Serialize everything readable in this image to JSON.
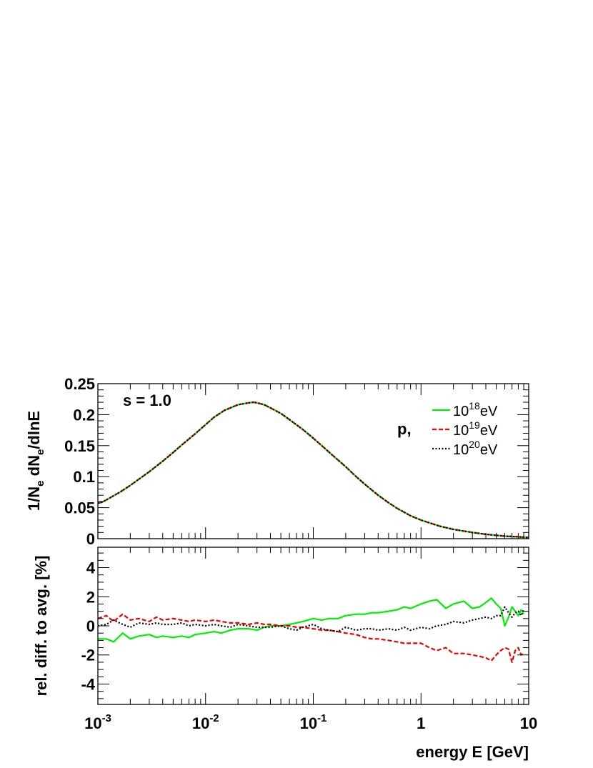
{
  "chart_data": [
    {
      "type": "line",
      "panel": "top",
      "ylabel": "1/N_e dN_e/dlnE",
      "ylabel_parts": {
        "a": "1/N",
        "a_sub": "e",
        "b": " dN",
        "b_sub": "e",
        "c": "/dlnE"
      },
      "annotation": "s = 1.0",
      "legend_prefix": "p,",
      "legend_position": "top-right",
      "x_scale": "log",
      "xlim": [
        0.001,
        10
      ],
      "ylim": [
        0,
        0.25
      ],
      "yticks": [
        0,
        0.05,
        0.1,
        0.15,
        0.2,
        0.25
      ],
      "ytick_labels": [
        "0",
        "0.05",
        "0.1",
        "0.15",
        "0.2",
        "0.25"
      ],
      "x": [
        0.001,
        0.0011,
        0.0013,
        0.0016,
        0.002,
        0.0025,
        0.003,
        0.004,
        0.005,
        0.006,
        0.008,
        0.01,
        0.012,
        0.015,
        0.02,
        0.025,
        0.028,
        0.03,
        0.035,
        0.04,
        0.05,
        0.06,
        0.08,
        0.1,
        0.12,
        0.15,
        0.2,
        0.25,
        0.3,
        0.4,
        0.5,
        0.6,
        0.8,
        1,
        1.5,
        2,
        3,
        4,
        6,
        8,
        10
      ],
      "series": [
        {
          "name_base": "10",
          "name_exp": "18",
          "name_unit": "eV",
          "color": "#00ee00",
          "dash": "solid",
          "values": [
            0.057,
            0.059,
            0.066,
            0.075,
            0.086,
            0.098,
            0.108,
            0.125,
            0.139,
            0.151,
            0.169,
            0.184,
            0.196,
            0.207,
            0.216,
            0.219,
            0.22,
            0.219,
            0.216,
            0.211,
            0.202,
            0.192,
            0.176,
            0.162,
            0.15,
            0.135,
            0.116,
            0.1,
            0.088,
            0.07,
            0.058,
            0.049,
            0.037,
            0.03,
            0.02,
            0.015,
            0.01,
            0.007,
            0.004,
            0.003,
            0.002
          ]
        },
        {
          "name_base": "10",
          "name_exp": "19",
          "name_unit": "eV",
          "color": "#ee0000",
          "dash": "dashed",
          "values": [
            0.057,
            0.059,
            0.066,
            0.075,
            0.086,
            0.098,
            0.108,
            0.125,
            0.139,
            0.151,
            0.169,
            0.184,
            0.196,
            0.207,
            0.216,
            0.219,
            0.22,
            0.219,
            0.216,
            0.211,
            0.202,
            0.192,
            0.176,
            0.162,
            0.15,
            0.135,
            0.116,
            0.1,
            0.088,
            0.07,
            0.058,
            0.049,
            0.037,
            0.03,
            0.02,
            0.015,
            0.01,
            0.007,
            0.004,
            0.003,
            0.002
          ]
        },
        {
          "name_base": "10",
          "name_exp": "20",
          "name_unit": "eV",
          "color": "#000000",
          "dash": "dotted",
          "values": [
            0.057,
            0.059,
            0.066,
            0.075,
            0.086,
            0.098,
            0.108,
            0.125,
            0.139,
            0.151,
            0.169,
            0.184,
            0.196,
            0.207,
            0.216,
            0.219,
            0.22,
            0.219,
            0.216,
            0.211,
            0.202,
            0.192,
            0.176,
            0.162,
            0.15,
            0.135,
            0.116,
            0.1,
            0.088,
            0.07,
            0.058,
            0.049,
            0.037,
            0.03,
            0.02,
            0.015,
            0.01,
            0.007,
            0.004,
            0.003,
            0.002
          ]
        }
      ]
    },
    {
      "type": "line",
      "panel": "bottom",
      "xlabel": "energy E [GeV]",
      "ylabel": "rel. diff. to avg. [%]",
      "x_scale": "log",
      "xlim": [
        0.001,
        10
      ],
      "ylim": [
        -5.4,
        5.4
      ],
      "xticks": [
        0.001,
        0.01,
        0.1,
        1,
        10
      ],
      "xtick_labels": [
        {
          "base": "10",
          "exp": "-3"
        },
        {
          "base": "10",
          "exp": "-2"
        },
        {
          "base": "10",
          "exp": "-1"
        },
        {
          "base": "1",
          "exp": ""
        },
        {
          "base": "10",
          "exp": ""
        }
      ],
      "yticks": [
        -4,
        -2,
        0,
        2,
        4
      ],
      "ytick_labels": [
        "-4",
        "-2",
        "0",
        "2",
        "4"
      ],
      "x": [
        0.001,
        0.0012,
        0.0014,
        0.0017,
        0.002,
        0.0024,
        0.003,
        0.0035,
        0.004,
        0.005,
        0.006,
        0.007,
        0.008,
        0.01,
        0.012,
        0.014,
        0.017,
        0.02,
        0.025,
        0.03,
        0.035,
        0.04,
        0.05,
        0.06,
        0.07,
        0.08,
        0.1,
        0.12,
        0.14,
        0.17,
        0.2,
        0.25,
        0.3,
        0.35,
        0.4,
        0.5,
        0.6,
        0.7,
        0.8,
        1,
        1.2,
        1.4,
        1.7,
        2,
        2.5,
        3,
        3.5,
        4,
        4.5,
        5,
        5.5,
        6,
        6.5,
        7,
        7.5,
        8,
        8.5,
        9
      ],
      "series": [
        {
          "name_base": "10",
          "name_exp": "18",
          "name_unit": "eV",
          "color": "#00ee00",
          "dash": "solid",
          "values": [
            -0.9,
            -0.9,
            -1.1,
            -0.5,
            -0.9,
            -0.7,
            -0.6,
            -0.8,
            -0.7,
            -0.8,
            -0.7,
            -0.8,
            -0.6,
            -0.5,
            -0.4,
            -0.5,
            -0.3,
            -0.2,
            -0.2,
            -0.3,
            -0.1,
            0.0,
            0.0,
            0.1,
            0.2,
            0.3,
            0.5,
            0.4,
            0.5,
            0.5,
            0.7,
            0.8,
            0.8,
            0.9,
            0.9,
            1.0,
            1.1,
            1.3,
            1.2,
            1.5,
            1.7,
            1.8,
            1.2,
            1.5,
            1.7,
            1.2,
            1.3,
            1.6,
            1.9,
            1.5,
            1.2,
            0.0,
            0.6,
            1.3,
            1.0,
            0.7,
            1.1,
            0.8
          ]
        },
        {
          "name_base": "10",
          "name_exp": "19",
          "name_unit": "eV",
          "color": "#ee0000",
          "dash": "dashed",
          "values": [
            0.5,
            0.7,
            0.3,
            0.8,
            0.4,
            0.5,
            0.3,
            0.6,
            0.4,
            0.5,
            0.4,
            0.3,
            0.4,
            0.3,
            0.4,
            0.3,
            0.2,
            0.2,
            0.1,
            0.2,
            0.1,
            0.1,
            0.0,
            0.0,
            -0.1,
            -0.1,
            -0.2,
            -0.3,
            -0.3,
            -0.4,
            -0.5,
            -0.6,
            -0.8,
            -0.9,
            -0.9,
            -1.0,
            -1.1,
            -1.2,
            -1.2,
            -1.2,
            -1.5,
            -1.7,
            -1.5,
            -1.9,
            -1.9,
            -2.0,
            -2.1,
            -2.2,
            -2.4,
            -2.0,
            -1.7,
            -1.5,
            -1.6,
            -2.5,
            -1.7,
            -1.5,
            -2.0,
            -1.9
          ]
        },
        {
          "name_base": "10",
          "name_exp": "20",
          "name_unit": "eV",
          "color": "#000000",
          "dash": "dotted",
          "values": [
            0.0,
            0.1,
            0.4,
            0.1,
            -0.1,
            0.2,
            0.1,
            0.2,
            0.1,
            0.1,
            0.2,
            0.0,
            0.1,
            0.0,
            0.1,
            0.0,
            -0.1,
            0.1,
            0.0,
            -0.1,
            -0.1,
            -0.1,
            0.0,
            -0.2,
            -0.3,
            -0.1,
            0.1,
            -0.2,
            -0.3,
            -0.4,
            -0.1,
            -0.3,
            -0.2,
            -0.2,
            -0.3,
            -0.2,
            -0.3,
            -0.1,
            -0.3,
            -0.1,
            -0.2,
            0.0,
            0.1,
            0.3,
            0.2,
            0.4,
            0.5,
            0.6,
            0.5,
            0.7,
            0.7,
            1.3,
            0.9,
            0.6,
            0.9,
            1.0,
            0.7,
            1.1
          ]
        }
      ]
    }
  ]
}
